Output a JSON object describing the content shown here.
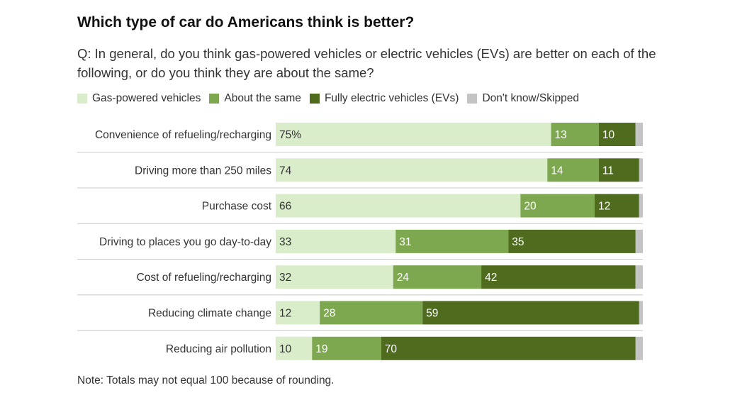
{
  "title": "Which type of car do Americans think is better?",
  "subtitle": "Q: In general, do you think gas-powered vehicles or electric vehicles (EVs) are better on each of the following, or do you think they are about the same?",
  "note": "Note: Totals may not equal 100 because of rounding.",
  "colors": {
    "gas": "#d9edcb",
    "same": "#7ea84f",
    "ev": "#4e6b1e",
    "dk": "#c4c4c4",
    "label_dark": "#333333",
    "label_light": "#ffffff"
  },
  "chart_data": {
    "type": "bar",
    "orientation": "horizontal",
    "stacked": true,
    "categories": [
      "Convenience of refueling/recharging",
      "Driving more than 250 miles",
      "Purchase cost",
      "Driving to places you go day-to-day",
      "Cost of refueling/recharging",
      "Reducing climate change",
      "Reducing air pollution"
    ],
    "series": [
      {
        "name": "Gas-powered vehicles",
        "key": "gas",
        "values": [
          75,
          74,
          66,
          33,
          32,
          12,
          10
        ],
        "labels": [
          "75%",
          "74",
          "66",
          "33",
          "32",
          "12",
          "10"
        ]
      },
      {
        "name": "About the same",
        "key": "same",
        "values": [
          13,
          14,
          20,
          31,
          24,
          28,
          19
        ],
        "labels": [
          "13",
          "14",
          "20",
          "31",
          "24",
          "28",
          "19"
        ]
      },
      {
        "name": "Fully electric vehicles (EVs)",
        "key": "ev",
        "values": [
          10,
          11,
          12,
          35,
          42,
          59,
          70
        ],
        "labels": [
          "10",
          "11",
          "12",
          "35",
          "42",
          "59",
          "70"
        ]
      },
      {
        "name": "Don't know/Skipped",
        "key": "dk",
        "values": [
          2,
          1,
          1,
          2,
          2,
          1,
          2
        ],
        "labels": [
          "",
          "",
          "",
          "",
          "",
          "",
          ""
        ]
      }
    ],
    "xlim": [
      0,
      100
    ],
    "legend_position": "top",
    "grid": false
  }
}
